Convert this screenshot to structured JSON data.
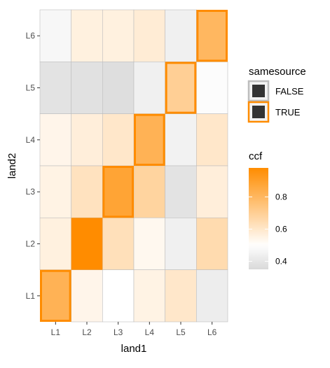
{
  "chart_data": {
    "type": "heatmap",
    "xlabel": "land1",
    "ylabel": "land2",
    "x_categories": [
      "L1",
      "L2",
      "L3",
      "L4",
      "L5",
      "L6"
    ],
    "y_categories": [
      "L1",
      "L2",
      "L3",
      "L4",
      "L5",
      "L6"
    ],
    "cells": [
      {
        "x": "L1",
        "y": "L6",
        "ccf": 0.47,
        "samesource": false
      },
      {
        "x": "L2",
        "y": "L6",
        "ccf": 0.56,
        "samesource": false
      },
      {
        "x": "L3",
        "y": "L6",
        "ccf": 0.56,
        "samesource": false
      },
      {
        "x": "L4",
        "y": "L6",
        "ccf": 0.58,
        "samesource": false
      },
      {
        "x": "L5",
        "y": "L6",
        "ccf": 0.44,
        "samesource": false
      },
      {
        "x": "L6",
        "y": "L6",
        "ccf": 0.8,
        "samesource": true
      },
      {
        "x": "L1",
        "y": "L5",
        "ccf": 0.39,
        "samesource": false
      },
      {
        "x": "L2",
        "y": "L5",
        "ccf": 0.38,
        "samesource": false
      },
      {
        "x": "L3",
        "y": "L5",
        "ccf": 0.37,
        "samesource": false
      },
      {
        "x": "L4",
        "y": "L5",
        "ccf": 0.44,
        "samesource": false
      },
      {
        "x": "L5",
        "y": "L5",
        "ccf": 0.7,
        "samesource": true
      },
      {
        "x": "L6",
        "y": "L5",
        "ccf": 0.49,
        "samesource": false
      },
      {
        "x": "L1",
        "y": "L4",
        "ccf": 0.54,
        "samesource": false
      },
      {
        "x": "L2",
        "y": "L4",
        "ccf": 0.57,
        "samesource": false
      },
      {
        "x": "L3",
        "y": "L4",
        "ccf": 0.6,
        "samesource": false
      },
      {
        "x": "L4",
        "y": "L4",
        "ccf": 0.82,
        "samesource": true
      },
      {
        "x": "L5",
        "y": "L4",
        "ccf": 0.45,
        "samesource": false
      },
      {
        "x": "L6",
        "y": "L4",
        "ccf": 0.6,
        "samesource": false
      },
      {
        "x": "L1",
        "y": "L3",
        "ccf": 0.55,
        "samesource": false
      },
      {
        "x": "L2",
        "y": "L3",
        "ccf": 0.62,
        "samesource": false
      },
      {
        "x": "L3",
        "y": "L3",
        "ccf": 0.88,
        "samesource": true
      },
      {
        "x": "L4",
        "y": "L3",
        "ccf": 0.68,
        "samesource": false
      },
      {
        "x": "L5",
        "y": "L3",
        "ccf": 0.39,
        "samesource": false
      },
      {
        "x": "L6",
        "y": "L3",
        "ccf": 0.57,
        "samesource": false
      },
      {
        "x": "L1",
        "y": "L2",
        "ccf": 0.56,
        "samesource": false
      },
      {
        "x": "L2",
        "y": "L2",
        "ccf": 0.98,
        "samesource": true
      },
      {
        "x": "L3",
        "y": "L2",
        "ccf": 0.63,
        "samesource": false
      },
      {
        "x": "L4",
        "y": "L2",
        "ccf": 0.53,
        "samesource": false
      },
      {
        "x": "L5",
        "y": "L2",
        "ccf": 0.44,
        "samesource": false
      },
      {
        "x": "L6",
        "y": "L2",
        "ccf": 0.65,
        "samesource": false
      },
      {
        "x": "L1",
        "y": "L1",
        "ccf": 0.82,
        "samesource": true
      },
      {
        "x": "L2",
        "y": "L1",
        "ccf": 0.54,
        "samesource": false
      },
      {
        "x": "L3",
        "y": "L1",
        "ccf": 0.5,
        "samesource": false
      },
      {
        "x": "L4",
        "y": "L1",
        "ccf": 0.55,
        "samesource": false
      },
      {
        "x": "L5",
        "y": "L1",
        "ccf": 0.6,
        "samesource": false
      },
      {
        "x": "L6",
        "y": "L1",
        "ccf": 0.43,
        "samesource": false
      }
    ],
    "color_scale": {
      "low": 0.35,
      "mid": 0.5,
      "high": 0.98,
      "low_color": "#d9d9d9",
      "mid_color": "#ffffff",
      "high_color": "#ff8c00"
    },
    "legend_samesource": {
      "title": "samesource",
      "items": [
        {
          "label": "FALSE",
          "border": "#bdbdbd"
        },
        {
          "label": "TRUE",
          "border": "#ff8c00"
        }
      ]
    },
    "legend_ccf": {
      "title": "ccf",
      "ticks": [
        0.4,
        0.6,
        0.8
      ],
      "tick_labels": [
        "0.4",
        "0.6",
        "0.8"
      ]
    },
    "panel_background": "#ebebeb",
    "grid": true,
    "legend_position": "right"
  }
}
